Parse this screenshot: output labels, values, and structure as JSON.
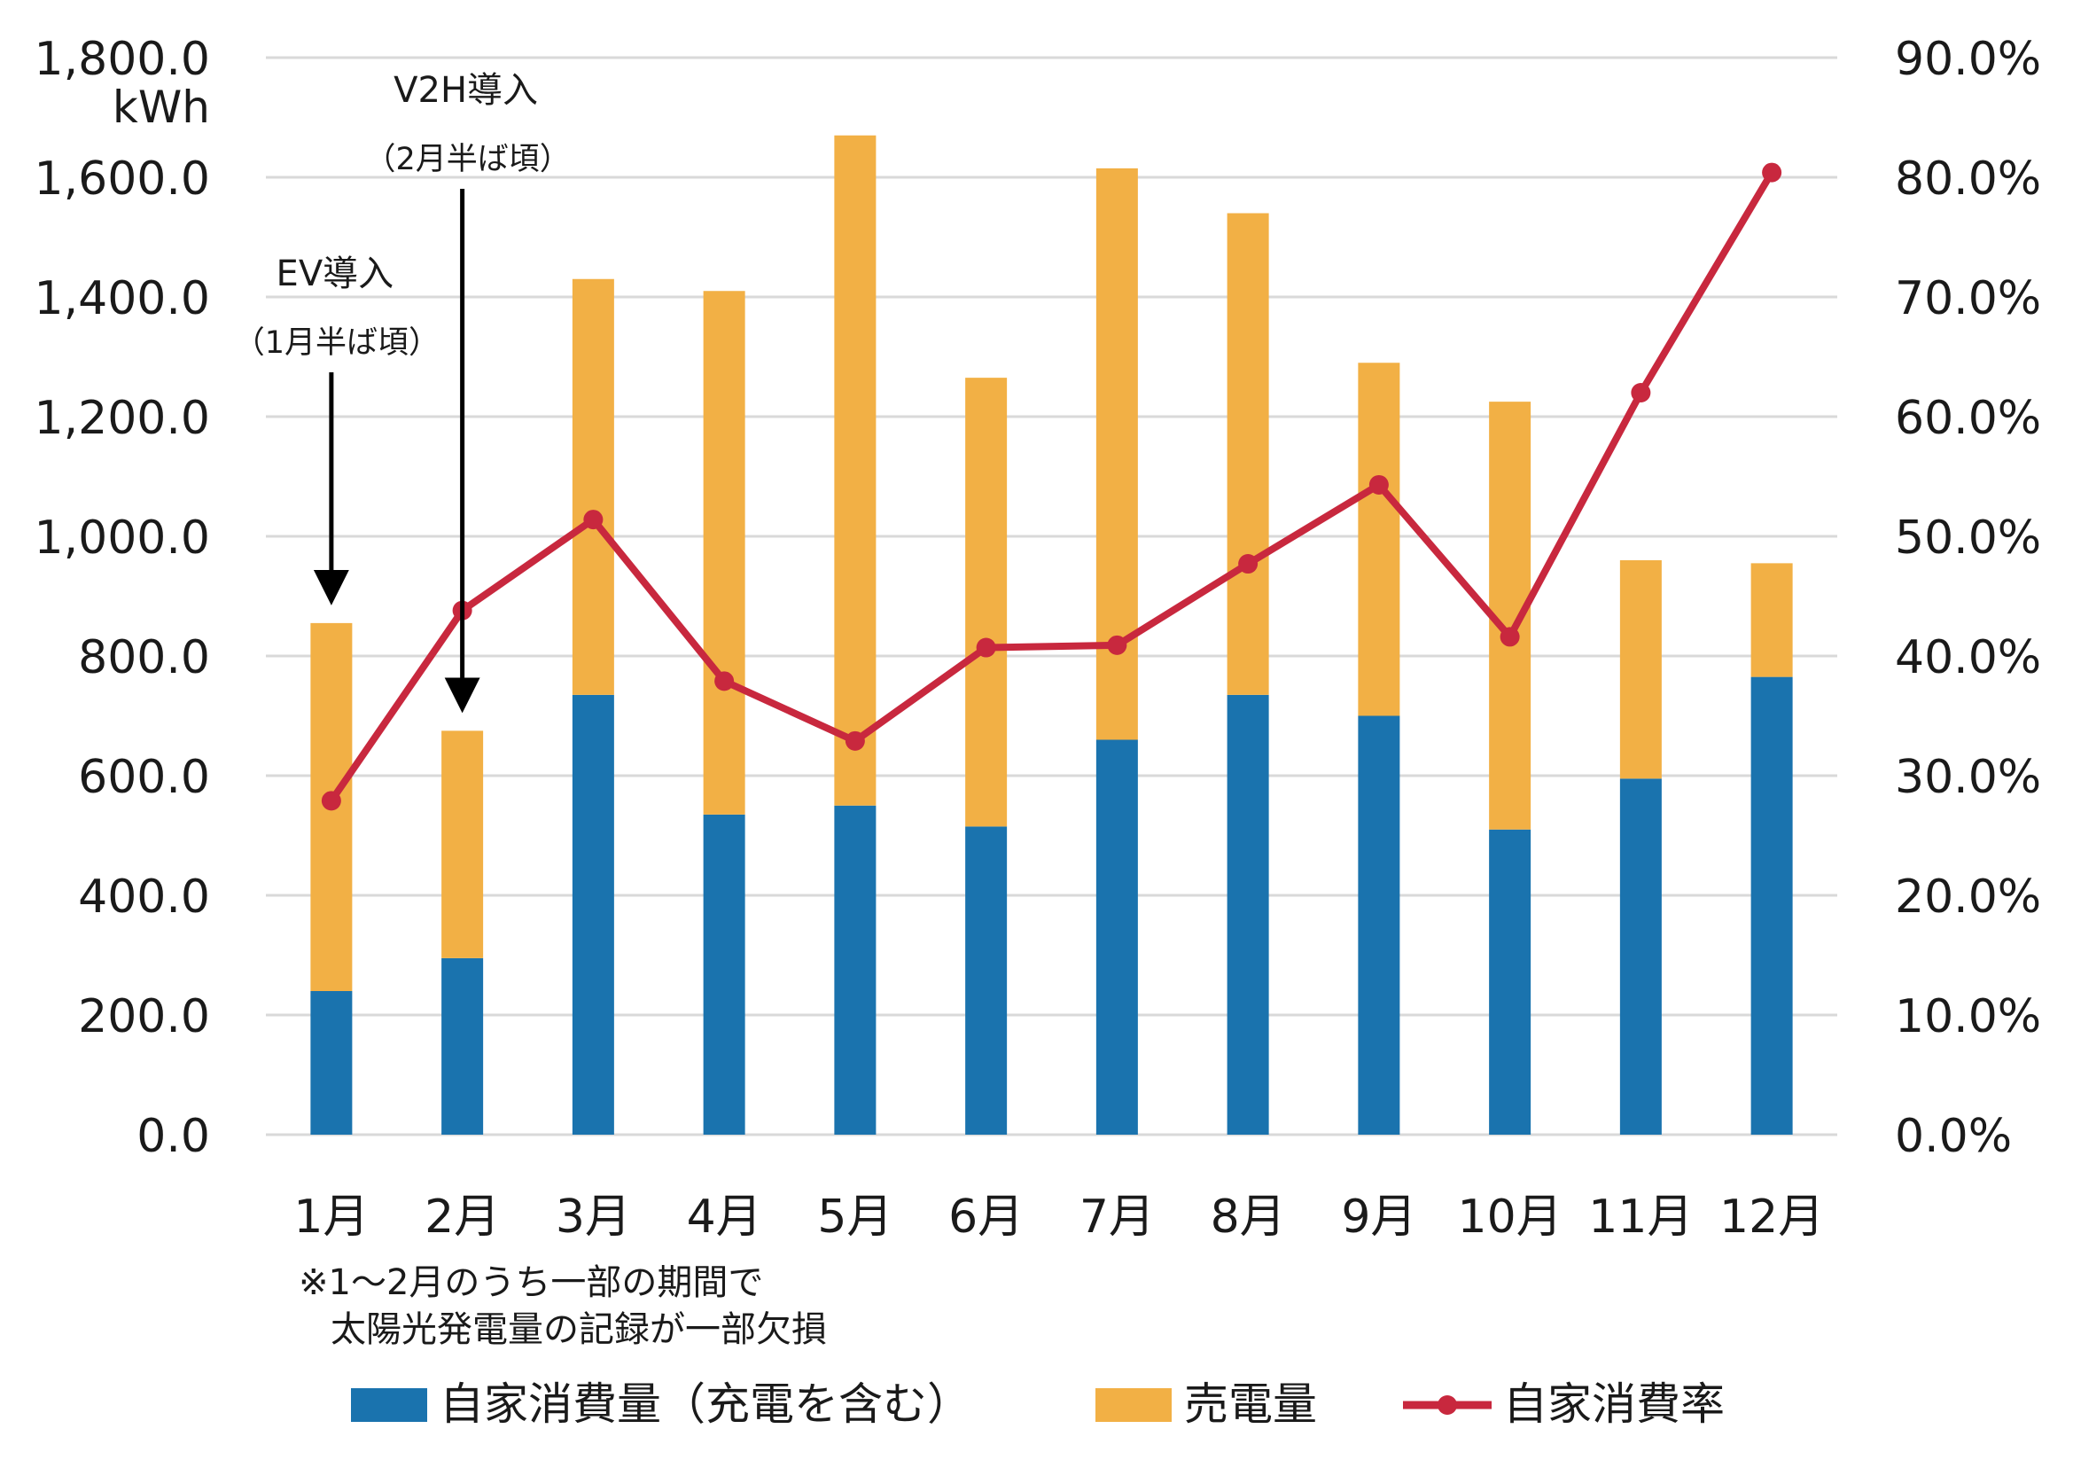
{
  "chart_data": {
    "type": "bar",
    "stacked": true,
    "categories": [
      "1月",
      "2月",
      "3月",
      "4月",
      "5月",
      "6月",
      "7月",
      "8月",
      "9月",
      "10月",
      "11月",
      "12月"
    ],
    "series": [
      {
        "name": "自家消費量（充電を含む）",
        "kind": "bar",
        "axis": "left",
        "color": "#1a73ae",
        "values": [
          240,
          295,
          735,
          535,
          550,
          515,
          660,
          735,
          700,
          510,
          595,
          765
        ]
      },
      {
        "name": "売電量",
        "kind": "bar",
        "axis": "left",
        "color": "#f2b045",
        "values": [
          615,
          380,
          695,
          875,
          1120,
          750,
          955,
          805,
          590,
          715,
          365,
          190
        ]
      },
      {
        "name": "自家消費率",
        "kind": "line",
        "axis": "right",
        "color": "#c8283e",
        "values": [
          27.9,
          43.8,
          51.4,
          37.9,
          32.9,
          40.7,
          40.9,
          47.7,
          54.3,
          41.6,
          62.0,
          80.4
        ]
      }
    ],
    "y_left": {
      "ylim": [
        0,
        1800
      ],
      "unit": "kWh",
      "ticks": [
        "0.0",
        "200.0",
        "400.0",
        "600.0",
        "800.0",
        "1,000.0",
        "1,200.0",
        "1,400.0",
        "1,600.0",
        "1,800.0"
      ]
    },
    "y_right": {
      "ylim": [
        0,
        90
      ],
      "ticks": [
        "0.0%",
        "10.0%",
        "20.0%",
        "30.0%",
        "40.0%",
        "50.0%",
        "60.0%",
        "70.0%",
        "80.0%",
        "90.0%"
      ]
    },
    "grid": true,
    "legend_position": "bottom",
    "annotations": [
      {
        "category_index": 0,
        "title": "EV導入",
        "subtitle": "（1月半ば頃）"
      },
      {
        "category_index": 1,
        "title": "V2H導入",
        "subtitle": "（2月半ば頃）"
      }
    ],
    "note": [
      "※1～2月のうち一部の期間で",
      "太陽光発電量の記録が一部欠損"
    ]
  }
}
